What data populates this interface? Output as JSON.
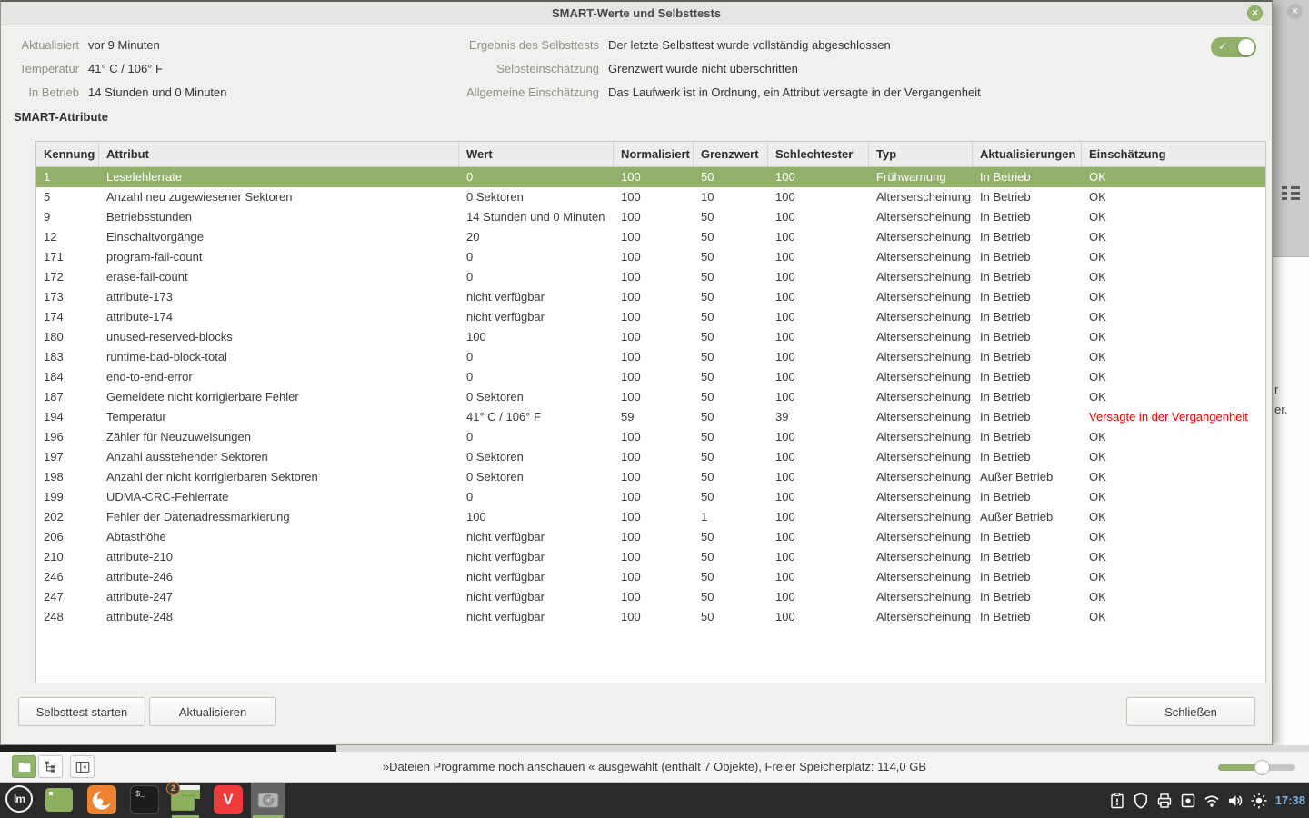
{
  "dialog": {
    "title": "SMART-Werte und Selbsttests",
    "header": {
      "left": [
        {
          "label": "Aktualisiert",
          "value": "vor 9 Minuten"
        },
        {
          "label": "Temperatur",
          "value": "41° C / 106° F"
        },
        {
          "label": "In Betrieb",
          "value": "14 Stunden und 0 Minuten"
        }
      ],
      "right": [
        {
          "label": "Ergebnis des Selbsttests",
          "value": "Der letzte Selbsttest wurde vollständig abgeschlossen"
        },
        {
          "label": "Selbsteinschätzung",
          "value": "Grenzwert wurde nicht überschritten"
        },
        {
          "label": "Allgemeine Einschätzung",
          "value": "Das Laufwerk ist in Ordnung, ein Attribut versagte in der Vergangenheit"
        }
      ],
      "smart_toggle_on": true
    },
    "section_title": "SMART-Attribute",
    "table": {
      "columns": [
        "Kennung",
        "Attribut",
        "Wert",
        "Normalisiert",
        "Grenzwert",
        "Schlechtester",
        "Typ",
        "Aktualisierungen",
        "Einschätzung"
      ],
      "rows": [
        {
          "id": "1",
          "attribute": "Lesefehlerrate",
          "value": "0",
          "normalized": "100",
          "threshold": "50",
          "worst": "100",
          "type": "Frühwarnung",
          "updates": "In Betrieb",
          "assessment": "OK",
          "selected": true
        },
        {
          "id": "5",
          "attribute": "Anzahl neu zugewiesener Sektoren",
          "value": "0 Sektoren",
          "normalized": "100",
          "threshold": "10",
          "worst": "100",
          "type": "Alterserscheinung",
          "updates": "In Betrieb",
          "assessment": "OK"
        },
        {
          "id": "9",
          "attribute": "Betriebsstunden",
          "value": "14 Stunden und 0 Minuten",
          "normalized": "100",
          "threshold": "50",
          "worst": "100",
          "type": "Alterserscheinung",
          "updates": "In Betrieb",
          "assessment": "OK"
        },
        {
          "id": "12",
          "attribute": "Einschaltvorgänge",
          "value": "20",
          "normalized": "100",
          "threshold": "50",
          "worst": "100",
          "type": "Alterserscheinung",
          "updates": "In Betrieb",
          "assessment": "OK"
        },
        {
          "id": "171",
          "attribute": "program-fail-count",
          "value": "0",
          "normalized": "100",
          "threshold": "50",
          "worst": "100",
          "type": "Alterserscheinung",
          "updates": "In Betrieb",
          "assessment": "OK"
        },
        {
          "id": "172",
          "attribute": "erase-fail-count",
          "value": "0",
          "normalized": "100",
          "threshold": "50",
          "worst": "100",
          "type": "Alterserscheinung",
          "updates": "In Betrieb",
          "assessment": "OK"
        },
        {
          "id": "173",
          "attribute": "attribute-173",
          "value": "nicht verfügbar",
          "normalized": "100",
          "threshold": "50",
          "worst": "100",
          "type": "Alterserscheinung",
          "updates": "In Betrieb",
          "assessment": "OK"
        },
        {
          "id": "174",
          "attribute": "attribute-174",
          "value": "nicht verfügbar",
          "normalized": "100",
          "threshold": "50",
          "worst": "100",
          "type": "Alterserscheinung",
          "updates": "In Betrieb",
          "assessment": "OK"
        },
        {
          "id": "180",
          "attribute": "unused-reserved-blocks",
          "value": "100",
          "normalized": "100",
          "threshold": "50",
          "worst": "100",
          "type": "Alterserscheinung",
          "updates": "In Betrieb",
          "assessment": "OK"
        },
        {
          "id": "183",
          "attribute": "runtime-bad-block-total",
          "value": "0",
          "normalized": "100",
          "threshold": "50",
          "worst": "100",
          "type": "Alterserscheinung",
          "updates": "In Betrieb",
          "assessment": "OK"
        },
        {
          "id": "184",
          "attribute": "end-to-end-error",
          "value": "0",
          "normalized": "100",
          "threshold": "50",
          "worst": "100",
          "type": "Alterserscheinung",
          "updates": "In Betrieb",
          "assessment": "OK"
        },
        {
          "id": "187",
          "attribute": "Gemeldete nicht korrigierbare Fehler",
          "value": "0 Sektoren",
          "normalized": "100",
          "threshold": "50",
          "worst": "100",
          "type": "Alterserscheinung",
          "updates": "In Betrieb",
          "assessment": "OK"
        },
        {
          "id": "194",
          "attribute": "Temperatur",
          "value": "41° C / 106° F",
          "normalized": "59",
          "threshold": "50",
          "worst": "39",
          "type": "Alterserscheinung",
          "updates": "In Betrieb",
          "assessment": "Versagte in der Vergangenheit",
          "failed_past": true
        },
        {
          "id": "196",
          "attribute": "Zähler für Neuzuweisungen",
          "value": "0",
          "normalized": "100",
          "threshold": "50",
          "worst": "100",
          "type": "Alterserscheinung",
          "updates": "In Betrieb",
          "assessment": "OK"
        },
        {
          "id": "197",
          "attribute": "Anzahl ausstehender Sektoren",
          "value": "0 Sektoren",
          "normalized": "100",
          "threshold": "50",
          "worst": "100",
          "type": "Alterserscheinung",
          "updates": "In Betrieb",
          "assessment": "OK"
        },
        {
          "id": "198",
          "attribute": "Anzahl der nicht korrigierbaren Sektoren",
          "value": "0 Sektoren",
          "normalized": "100",
          "threshold": "50",
          "worst": "100",
          "type": "Alterserscheinung",
          "updates": "Außer Betrieb",
          "assessment": "OK"
        },
        {
          "id": "199",
          "attribute": "UDMA-CRC-Fehlerrate",
          "value": "0",
          "normalized": "100",
          "threshold": "50",
          "worst": "100",
          "type": "Alterserscheinung",
          "updates": "In Betrieb",
          "assessment": "OK"
        },
        {
          "id": "202",
          "attribute": "Fehler der Datenadressmarkierung",
          "value": "100",
          "normalized": "100",
          "threshold": "1",
          "worst": "100",
          "type": "Alterserscheinung",
          "updates": "Außer Betrieb",
          "assessment": "OK"
        },
        {
          "id": "206",
          "attribute": "Abtasthöhe",
          "value": "nicht verfügbar",
          "normalized": "100",
          "threshold": "50",
          "worst": "100",
          "type": "Alterserscheinung",
          "updates": "In Betrieb",
          "assessment": "OK"
        },
        {
          "id": "210",
          "attribute": "attribute-210",
          "value": "nicht verfügbar",
          "normalized": "100",
          "threshold": "50",
          "worst": "100",
          "type": "Alterserscheinung",
          "updates": "In Betrieb",
          "assessment": "OK"
        },
        {
          "id": "246",
          "attribute": "attribute-246",
          "value": "nicht verfügbar",
          "normalized": "100",
          "threshold": "50",
          "worst": "100",
          "type": "Alterserscheinung",
          "updates": "In Betrieb",
          "assessment": "OK"
        },
        {
          "id": "247",
          "attribute": "attribute-247",
          "value": "nicht verfügbar",
          "normalized": "100",
          "threshold": "50",
          "worst": "100",
          "type": "Alterserscheinung",
          "updates": "In Betrieb",
          "assessment": "OK"
        },
        {
          "id": "248",
          "attribute": "attribute-248",
          "value": "nicht verfügbar",
          "normalized": "100",
          "threshold": "50",
          "worst": "100",
          "type": "Alterserscheinung",
          "updates": "In Betrieb",
          "assessment": "OK"
        }
      ]
    },
    "buttons": {
      "self_test": "Selbsttest starten",
      "refresh": "Aktualisieren",
      "close_label": "✕",
      "close": "Schließen"
    },
    "toggle_check": "✓"
  },
  "background_window": {
    "close_label": "✕",
    "fragments": [
      {
        "text": "r"
      },
      {
        "text": "er."
      }
    ]
  },
  "statusbar": {
    "text": "»Dateien Programme noch anschauen « ausgewählt (enthält 7 Objekte), Freier Speicherplatz: 114,0 GB"
  },
  "taskbar": {
    "mint_logo_text": "lm",
    "terminal_glyph": "$_",
    "vivaldi_letter": "V",
    "files_badge": "2",
    "clock": "17:38"
  },
  "colors": {
    "accent_green": "#92b06a",
    "selected_row_green": "#93b06b",
    "failed_red": "#e60000",
    "clock_blue": "#7fb2dd",
    "taskbar_bg": "#2a2a2a"
  }
}
